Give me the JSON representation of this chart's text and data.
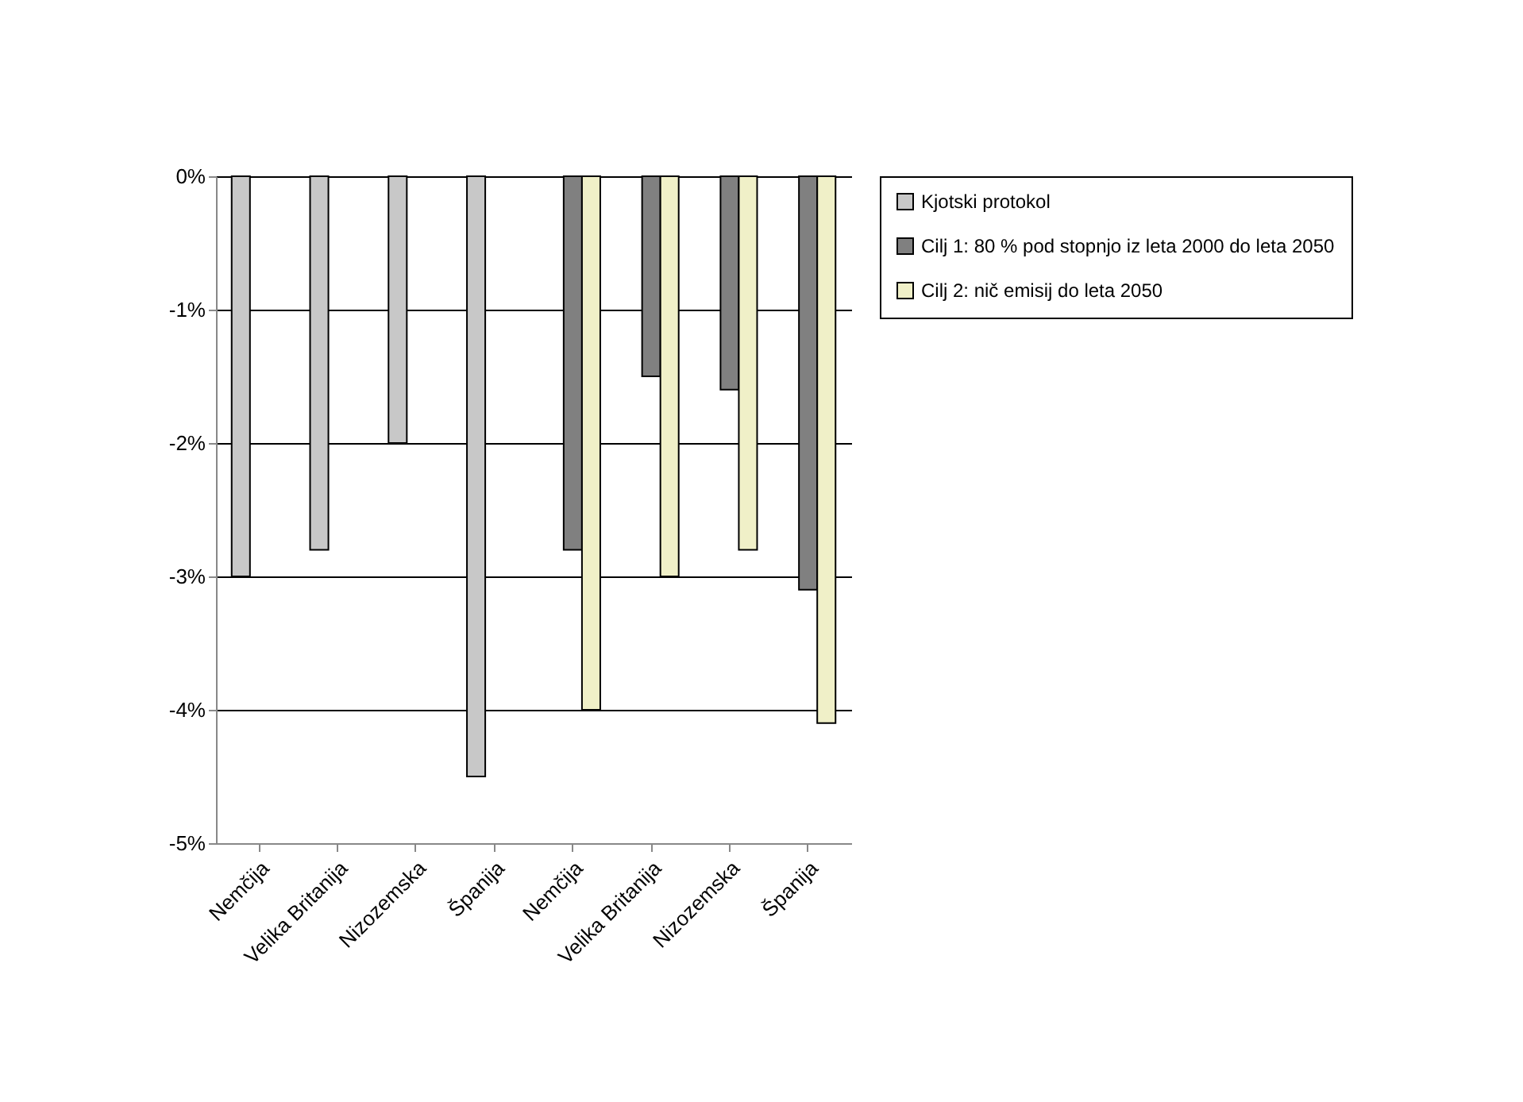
{
  "chart_data": {
    "type": "bar",
    "categories": [
      "Nemčija",
      "Velika Britanija",
      "Nizozemska",
      "Španija",
      "Nemčija",
      "Velika Britanija",
      "Nizozemska",
      "Španija"
    ],
    "series": [
      {
        "name": "Kjotski protokol",
        "color": "#c8c8c8",
        "values": [
          -3.0,
          -2.8,
          -2.0,
          -4.5,
          null,
          null,
          null,
          null
        ]
      },
      {
        "name": "Cilj 1: 80 % pod stopnjo iz leta 2000 do leta 2050",
        "color": "#808080",
        "values": [
          null,
          null,
          null,
          null,
          -2.8,
          -1.5,
          -1.6,
          -3.1
        ]
      },
      {
        "name": "Cilj 2: nič emisij do leta 2050",
        "color": "#f0f0c8",
        "values": [
          null,
          null,
          null,
          null,
          -4.0,
          -3.0,
          -2.8,
          -4.1
        ]
      }
    ],
    "ylim": [
      -5,
      0
    ],
    "yticks": [
      {
        "value": 0,
        "label": "0%"
      },
      {
        "value": -1,
        "label": "-1%"
      },
      {
        "value": -2,
        "label": "-2%"
      },
      {
        "value": -3,
        "label": "-3%"
      },
      {
        "value": -4,
        "label": "-4%"
      },
      {
        "value": -5,
        "label": "-5%"
      }
    ],
    "grid": "y",
    "legend": "right"
  }
}
